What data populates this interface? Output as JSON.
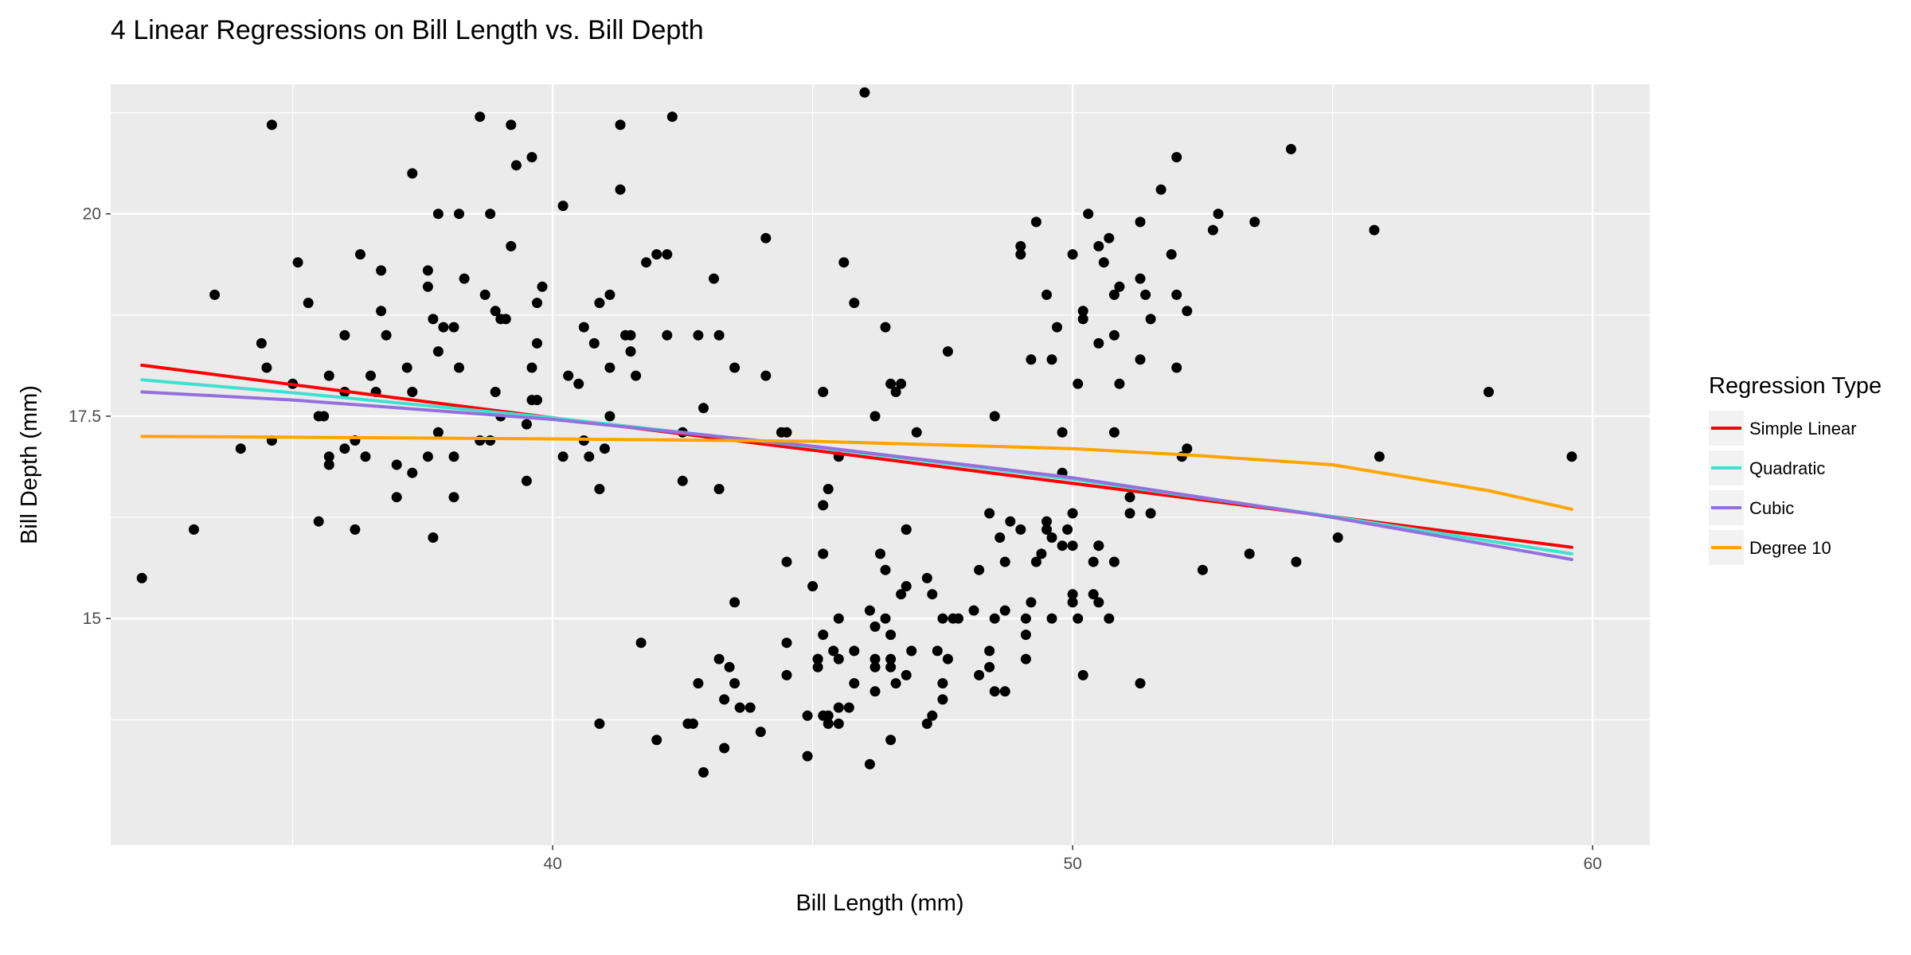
{
  "chart_data": {
    "type": "scatter",
    "title": "4 Linear Regressions on Bill Length vs. Bill Depth",
    "xlabel": "Bill Length (mm)",
    "ylabel": "Bill Depth (mm)",
    "xlim": [
      31.5,
      61.1
    ],
    "ylim": [
      12.2,
      21.6
    ],
    "x_ticks": [
      40,
      50,
      60
    ],
    "x_tick_labels": [
      "40",
      "50",
      "60"
    ],
    "y_ticks": [
      15,
      17.5,
      20
    ],
    "y_tick_labels": [
      "15",
      "17.5",
      "20"
    ],
    "grid": true,
    "legend_position": "right",
    "legend_title": "Regression Type",
    "points": [
      [
        32.1,
        15.5
      ],
      [
        33.1,
        16.1
      ],
      [
        33.5,
        19.0
      ],
      [
        34.0,
        17.1
      ],
      [
        34.4,
        18.4
      ],
      [
        34.5,
        18.1
      ],
      [
        34.6,
        17.2
      ],
      [
        34.6,
        21.1
      ],
      [
        35.0,
        17.9
      ],
      [
        35.1,
        19.4
      ],
      [
        35.3,
        18.9
      ],
      [
        35.5,
        17.5
      ],
      [
        35.5,
        16.2
      ],
      [
        35.6,
        17.5
      ],
      [
        35.7,
        17.0
      ],
      [
        35.7,
        16.9
      ],
      [
        35.7,
        18.0
      ],
      [
        36.0,
        17.1
      ],
      [
        36.0,
        17.8
      ],
      [
        36.0,
        18.5
      ],
      [
        36.2,
        17.2
      ],
      [
        36.2,
        16.1
      ],
      [
        36.3,
        19.5
      ],
      [
        36.4,
        17.0
      ],
      [
        36.5,
        18.0
      ],
      [
        36.6,
        17.8
      ],
      [
        36.7,
        18.8
      ],
      [
        36.7,
        19.3
      ],
      [
        36.8,
        18.5
      ],
      [
        37.0,
        16.9
      ],
      [
        37.0,
        16.5
      ],
      [
        37.2,
        18.1
      ],
      [
        37.3,
        17.8
      ],
      [
        37.3,
        16.8
      ],
      [
        37.3,
        20.5
      ],
      [
        37.6,
        19.1
      ],
      [
        37.6,
        19.3
      ],
      [
        37.6,
        17.0
      ],
      [
        37.7,
        18.7
      ],
      [
        37.7,
        16.0
      ],
      [
        37.8,
        17.3
      ],
      [
        37.8,
        18.3
      ],
      [
        37.8,
        20.0
      ],
      [
        37.9,
        18.6
      ],
      [
        38.1,
        17.0
      ],
      [
        38.1,
        16.5
      ],
      [
        38.1,
        18.6
      ],
      [
        38.2,
        18.1
      ],
      [
        38.2,
        20.0
      ],
      [
        38.3,
        19.2
      ],
      [
        38.6,
        17.2
      ],
      [
        38.6,
        21.2
      ],
      [
        38.7,
        19.0
      ],
      [
        38.8,
        17.2
      ],
      [
        38.8,
        20.0
      ],
      [
        38.9,
        17.8
      ],
      [
        38.9,
        18.8
      ],
      [
        39.0,
        17.5
      ],
      [
        39.0,
        18.7
      ],
      [
        39.1,
        18.7
      ],
      [
        39.2,
        19.6
      ],
      [
        39.2,
        21.1
      ],
      [
        39.3,
        20.6
      ],
      [
        39.5,
        16.7
      ],
      [
        39.5,
        17.4
      ],
      [
        39.6,
        17.7
      ],
      [
        39.6,
        18.1
      ],
      [
        39.6,
        20.7
      ],
      [
        39.7,
        17.7
      ],
      [
        39.7,
        18.4
      ],
      [
        39.7,
        18.9
      ],
      [
        39.8,
        19.1
      ],
      [
        40.2,
        17.0
      ],
      [
        40.2,
        20.1
      ],
      [
        40.3,
        18.0
      ],
      [
        40.5,
        17.9
      ],
      [
        40.6,
        17.2
      ],
      [
        40.6,
        18.6
      ],
      [
        40.7,
        17.0
      ],
      [
        40.8,
        18.4
      ],
      [
        40.9,
        16.6
      ],
      [
        40.9,
        18.9
      ],
      [
        41.0,
        17.1
      ],
      [
        41.1,
        17.5
      ],
      [
        41.1,
        18.1
      ],
      [
        41.1,
        19.0
      ],
      [
        41.3,
        20.3
      ],
      [
        41.3,
        21.1
      ],
      [
        41.4,
        18.5
      ],
      [
        41.5,
        18.3
      ],
      [
        41.5,
        18.5
      ],
      [
        41.6,
        18.0
      ],
      [
        41.8,
        19.4
      ],
      [
        42.0,
        19.5
      ],
      [
        42.2,
        18.5
      ],
      [
        42.2,
        19.5
      ],
      [
        42.3,
        21.2
      ],
      [
        42.5,
        17.3
      ],
      [
        42.5,
        16.7
      ],
      [
        42.8,
        18.5
      ],
      [
        42.9,
        17.6
      ],
      [
        43.1,
        19.2
      ],
      [
        43.2,
        18.5
      ],
      [
        43.2,
        16.6
      ],
      [
        43.5,
        18.1
      ],
      [
        44.1,
        18.0
      ],
      [
        44.1,
        19.7
      ],
      [
        44.5,
        17.3
      ],
      [
        45.2,
        17.8
      ],
      [
        45.3,
        16.6
      ],
      [
        45.5,
        17.0
      ],
      [
        45.6,
        19.4
      ],
      [
        45.8,
        18.9
      ],
      [
        46.0,
        21.5
      ],
      [
        46.2,
        17.5
      ],
      [
        46.4,
        18.6
      ],
      [
        46.5,
        17.9
      ],
      [
        46.6,
        17.8
      ],
      [
        46.7,
        17.9
      ],
      [
        46.8,
        16.1
      ],
      [
        47.0,
        17.3
      ],
      [
        47.6,
        18.3
      ],
      [
        48.5,
        17.5
      ],
      [
        49.0,
        19.5
      ],
      [
        49.0,
        19.6
      ],
      [
        49.2,
        18.2
      ],
      [
        49.3,
        19.9
      ],
      [
        49.5,
        19.0
      ],
      [
        49.6,
        18.2
      ],
      [
        49.7,
        18.6
      ],
      [
        49.8,
        17.3
      ],
      [
        50.0,
        19.5
      ],
      [
        50.1,
        17.9
      ],
      [
        50.2,
        18.8
      ],
      [
        50.2,
        18.7
      ],
      [
        50.3,
        20.0
      ],
      [
        50.5,
        18.4
      ],
      [
        50.5,
        19.6
      ],
      [
        50.6,
        19.4
      ],
      [
        50.7,
        19.7
      ],
      [
        50.8,
        18.5
      ],
      [
        50.8,
        19.0
      ],
      [
        50.9,
        17.9
      ],
      [
        50.9,
        19.1
      ],
      [
        51.3,
        18.2
      ],
      [
        51.3,
        19.2
      ],
      [
        51.3,
        19.9
      ],
      [
        51.4,
        19.0
      ],
      [
        51.5,
        18.7
      ],
      [
        51.7,
        20.3
      ],
      [
        51.9,
        19.5
      ],
      [
        52.0,
        18.1
      ],
      [
        52.0,
        19.0
      ],
      [
        52.0,
        20.7
      ],
      [
        52.2,
        18.8
      ],
      [
        52.7,
        19.8
      ],
      [
        52.8,
        20.0
      ],
      [
        53.5,
        19.9
      ],
      [
        54.2,
        20.8
      ],
      [
        55.8,
        19.8
      ],
      [
        58.0,
        17.8
      ],
      [
        46.1,
        13.2
      ],
      [
        50.0,
        16.3
      ],
      [
        48.7,
        14.1
      ],
      [
        50.0,
        15.2
      ],
      [
        47.6,
        14.5
      ],
      [
        46.5,
        13.5
      ],
      [
        45.4,
        14.6
      ],
      [
        46.7,
        15.3
      ],
      [
        43.3,
        13.4
      ],
      [
        46.8,
        15.4
      ],
      [
        40.9,
        13.7
      ],
      [
        49.0,
        16.1
      ],
      [
        45.5,
        13.7
      ],
      [
        48.4,
        14.6
      ],
      [
        45.8,
        14.6
      ],
      [
        49.3,
        15.7
      ],
      [
        42.0,
        13.5
      ],
      [
        49.2,
        15.2
      ],
      [
        46.2,
        14.5
      ],
      [
        48.7,
        15.1
      ],
      [
        50.2,
        14.3
      ],
      [
        45.1,
        14.5
      ],
      [
        46.5,
        14.5
      ],
      [
        46.3,
        15.8
      ],
      [
        42.9,
        13.1
      ],
      [
        46.1,
        15.1
      ],
      [
        44.5,
        14.3
      ],
      [
        47.8,
        15.0
      ],
      [
        48.2,
        14.3
      ],
      [
        50.0,
        15.3
      ],
      [
        47.3,
        15.3
      ],
      [
        42.8,
        14.2
      ],
      [
        45.1,
        14.5
      ],
      [
        59.6,
        17.0
      ],
      [
        49.1,
        14.8
      ],
      [
        48.4,
        16.3
      ],
      [
        42.6,
        13.7
      ],
      [
        44.4,
        17.3
      ],
      [
        44.0,
        13.6
      ],
      [
        48.7,
        15.7
      ],
      [
        42.7,
        13.7
      ],
      [
        49.6,
        16.0
      ],
      [
        45.3,
        13.7
      ],
      [
        49.6,
        15.0
      ],
      [
        50.5,
        15.9
      ],
      [
        43.6,
        13.9
      ],
      [
        45.5,
        13.9
      ],
      [
        50.5,
        15.9
      ],
      [
        44.9,
        13.3
      ],
      [
        45.2,
        15.8
      ],
      [
        46.6,
        14.2
      ],
      [
        48.5,
        14.1
      ],
      [
        45.1,
        14.4
      ],
      [
        50.1,
        15.0
      ],
      [
        46.5,
        14.4
      ],
      [
        45.0,
        15.4
      ],
      [
        43.8,
        13.9
      ],
      [
        45.5,
        15.0
      ],
      [
        43.2,
        14.5
      ],
      [
        50.4,
        15.3
      ],
      [
        45.3,
        13.8
      ],
      [
        46.2,
        14.9
      ],
      [
        45.7,
        13.9
      ],
      [
        54.3,
        15.7
      ],
      [
        45.8,
        14.2
      ],
      [
        49.8,
        16.8
      ],
      [
        46.2,
        14.4
      ],
      [
        49.5,
        16.2
      ],
      [
        43.5,
        14.2
      ],
      [
        50.7,
        15.0
      ],
      [
        47.7,
        15.0
      ],
      [
        46.4,
        15.6
      ],
      [
        48.2,
        15.6
      ],
      [
        46.5,
        14.8
      ],
      [
        46.4,
        15.0
      ],
      [
        48.6,
        16.0
      ],
      [
        47.5,
        14.2
      ],
      [
        51.1,
        16.3
      ],
      [
        45.2,
        13.8
      ],
      [
        45.2,
        16.4
      ],
      [
        49.1,
        14.5
      ],
      [
        52.5,
        15.6
      ],
      [
        47.4,
        14.6
      ],
      [
        50.0,
        15.9
      ],
      [
        44.9,
        13.8
      ],
      [
        50.8,
        17.3
      ],
      [
        43.4,
        14.4
      ],
      [
        51.3,
        14.2
      ],
      [
        47.5,
        14.0
      ],
      [
        52.1,
        17.0
      ],
      [
        47.5,
        15.0
      ],
      [
        52.2,
        17.1
      ],
      [
        45.5,
        14.5
      ],
      [
        49.5,
        16.1
      ],
      [
        44.5,
        14.7
      ],
      [
        50.8,
        15.7
      ],
      [
        49.4,
        15.8
      ],
      [
        46.9,
        14.6
      ],
      [
        48.4,
        14.4
      ],
      [
        51.1,
        16.5
      ],
      [
        48.5,
        15.0
      ],
      [
        55.9,
        17.0
      ],
      [
        47.2,
        15.5
      ],
      [
        49.1,
        15.0
      ],
      [
        47.3,
        13.8
      ],
      [
        46.8,
        16.1
      ],
      [
        41.7,
        14.7
      ],
      [
        53.4,
        15.8
      ],
      [
        43.3,
        14.0
      ],
      [
        48.1,
        15.1
      ],
      [
        50.5,
        15.2
      ],
      [
        49.8,
        15.9
      ],
      [
        43.5,
        15.2
      ],
      [
        51.5,
        16.3
      ],
      [
        46.2,
        14.1
      ],
      [
        55.1,
        16.0
      ],
      [
        44.5,
        15.7
      ],
      [
        48.8,
        16.2
      ],
      [
        47.2,
        13.7
      ],
      [
        46.8,
        14.3
      ],
      [
        50.4,
        15.7
      ],
      [
        45.2,
        14.8
      ],
      [
        49.9,
        16.1
      ]
    ],
    "series": [
      {
        "name": "Simple Linear",
        "color": "#ff0000",
        "x": [
          32.1,
          35.0,
          40.0,
          45.0,
          50.0,
          55.0,
          59.6
        ],
        "y": [
          18.13,
          17.89,
          17.48,
          17.08,
          16.67,
          16.26,
          15.88
        ]
      },
      {
        "name": "Quadratic",
        "color": "#40e0d0",
        "x": [
          32.1,
          35.0,
          40.0,
          45.0,
          50.0,
          55.0,
          59.6
        ],
        "y": [
          17.95,
          17.79,
          17.48,
          17.12,
          16.72,
          16.26,
          15.8
        ]
      },
      {
        "name": "Cubic",
        "color": "#9370db",
        "x": [
          32.1,
          35.0,
          40.0,
          45.0,
          50.0,
          55.0,
          59.6
        ],
        "y": [
          17.8,
          17.7,
          17.46,
          17.13,
          16.74,
          16.25,
          15.73
        ]
      },
      {
        "name": "Degree 10",
        "color": "#ffa500",
        "x": [
          32.1,
          35.0,
          40.0,
          45.0,
          50.0,
          52.5,
          55.0,
          58.0,
          59.6
        ],
        "y": [
          17.25,
          17.24,
          17.22,
          17.19,
          17.1,
          17.01,
          16.9,
          16.58,
          16.35
        ]
      }
    ]
  }
}
